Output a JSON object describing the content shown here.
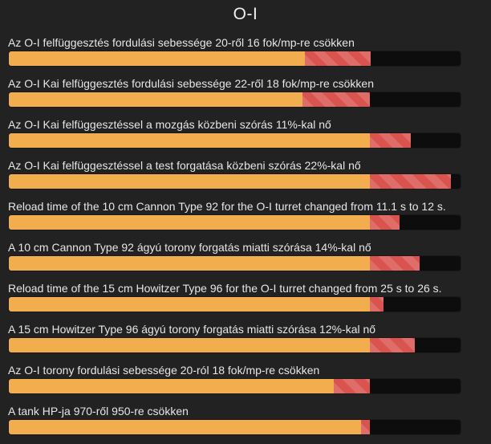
{
  "title": "O-I",
  "colors": {
    "background": "#222222",
    "track": "#0d0d0d",
    "base_fill": "#f1ad4e",
    "change_fill": "#d9534f"
  },
  "changes": [
    {
      "label": "Az O-I felfüggesztés fordulási sebessége 20-ről 16 fok/mp-re csökken",
      "base": 0.655,
      "change_start": 0.655,
      "change_end": 0.8
    },
    {
      "label": "Az O-I Kai felfüggesztés fordulási sebessége 22-ről 18 fok/mp-re csökken",
      "base": 0.65,
      "change_start": 0.65,
      "change_end": 0.8
    },
    {
      "label": "Az O-I Kai felfüggesztéssel a mozgás közbeni szórás 11%-kal nő",
      "base": 0.8,
      "change_start": 0.8,
      "change_end": 0.89
    },
    {
      "label": "Az O-I Kai felfüggesztéssel a test forgatása közbeni szórás 22%-kal nő",
      "base": 0.8,
      "change_start": 0.8,
      "change_end": 0.98
    },
    {
      "label": "Reload time of the 10 cm Cannon Type 92 for the O-I turret changed from 11.1 s to 12 s.",
      "base": 0.8,
      "change_start": 0.8,
      "change_end": 0.865
    },
    {
      "label": "A 10 cm Cannon Type 92 ágyú torony forgatás miatti szórása 14%-kal nő",
      "base": 0.8,
      "change_start": 0.8,
      "change_end": 0.91
    },
    {
      "label": "Reload time of the 15 cm Howitzer Type 96 for the O-I turret changed from 25 s to 26 s.",
      "base": 0.8,
      "change_start": 0.8,
      "change_end": 0.83
    },
    {
      "label": "A 15 cm Howitzer Type 96 ágyú torony forgatás miatti szórása 12%-kal nő",
      "base": 0.8,
      "change_start": 0.8,
      "change_end": 0.9
    },
    {
      "label": "Az O-I torony fordulási sebessége 20-ról 18 fok/mp-re csökken",
      "base": 0.72,
      "change_start": 0.72,
      "change_end": 0.8
    },
    {
      "label": "A tank HP-ja 970-ről 950-re csökken",
      "base": 0.78,
      "change_start": 0.78,
      "change_end": 0.8
    }
  ]
}
